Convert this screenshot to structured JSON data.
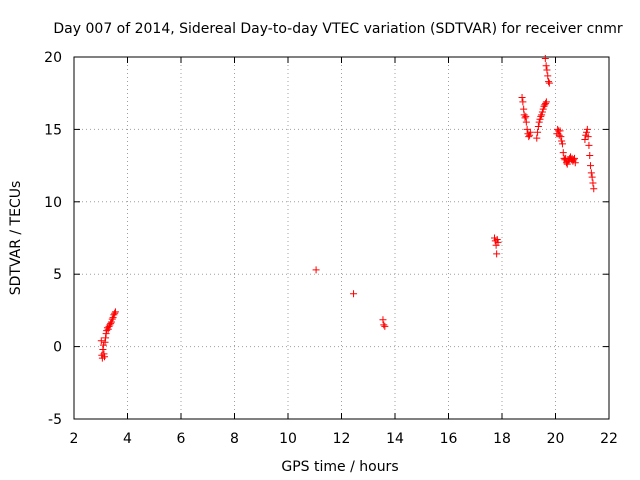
{
  "chart_data": {
    "type": "scatter",
    "title": "Day 007 of 2014, Sidereal Day-to-day VTEC variation (SDTVAR) for receiver cnmr",
    "xlabel": "GPS time / hours",
    "ylabel": "SDTVAR / TECUs",
    "xlim": [
      2,
      22
    ],
    "ylim": [
      -5,
      20
    ],
    "xticks": [
      2,
      4,
      6,
      8,
      10,
      12,
      14,
      16,
      18,
      20,
      22
    ],
    "yticks": [
      -5,
      0,
      5,
      10,
      15,
      20
    ],
    "grid": true,
    "marker": "+",
    "marker_color": "#ff0000",
    "series": [
      {
        "name": "SDTVAR",
        "points": [
          [
            3.02,
            0.4
          ],
          [
            3.04,
            -0.6
          ],
          [
            3.06,
            -0.8
          ],
          [
            3.08,
            -0.2
          ],
          [
            3.1,
            0.1
          ],
          [
            3.12,
            -0.5
          ],
          [
            3.14,
            -0.7
          ],
          [
            3.16,
            0.3
          ],
          [
            3.18,
            0.6
          ],
          [
            3.2,
            0.9
          ],
          [
            3.22,
            1.1
          ],
          [
            3.25,
            1.3
          ],
          [
            3.28,
            1.2
          ],
          [
            3.31,
            1.4
          ],
          [
            3.34,
            1.5
          ],
          [
            3.37,
            1.6
          ],
          [
            3.4,
            1.7
          ],
          [
            3.43,
            1.9
          ],
          [
            3.46,
            2.0
          ],
          [
            3.49,
            2.2
          ],
          [
            3.52,
            2.3
          ],
          [
            3.55,
            2.4
          ],
          [
            11.05,
            5.3
          ],
          [
            12.45,
            3.65
          ],
          [
            13.55,
            1.85
          ],
          [
            13.58,
            1.5
          ],
          [
            13.62,
            1.4
          ],
          [
            17.72,
            7.5
          ],
          [
            17.75,
            7.3
          ],
          [
            17.78,
            7.0
          ],
          [
            17.8,
            6.4
          ],
          [
            17.82,
            7.4
          ],
          [
            17.85,
            7.2
          ],
          [
            18.75,
            17.2
          ],
          [
            18.78,
            16.9
          ],
          [
            18.81,
            16.4
          ],
          [
            18.83,
            16.0
          ],
          [
            18.86,
            15.8
          ],
          [
            18.89,
            15.9
          ],
          [
            18.91,
            15.5
          ],
          [
            18.94,
            15.0
          ],
          [
            18.97,
            14.7
          ],
          [
            19.0,
            14.5
          ],
          [
            19.03,
            14.6
          ],
          [
            19.06,
            14.8
          ],
          [
            19.3,
            14.4
          ],
          [
            19.33,
            14.8
          ],
          [
            19.36,
            15.2
          ],
          [
            19.39,
            15.5
          ],
          [
            19.42,
            15.7
          ],
          [
            19.45,
            15.9
          ],
          [
            19.48,
            16.0
          ],
          [
            19.51,
            16.2
          ],
          [
            19.54,
            16.4
          ],
          [
            19.57,
            16.6
          ],
          [
            19.6,
            16.7
          ],
          [
            19.63,
            16.8
          ],
          [
            19.66,
            16.9
          ],
          [
            19.62,
            19.9
          ],
          [
            19.65,
            19.4
          ],
          [
            19.68,
            19.1
          ],
          [
            19.71,
            18.7
          ],
          [
            19.74,
            18.3
          ],
          [
            19.77,
            18.2
          ],
          [
            20.05,
            14.7
          ],
          [
            20.08,
            15.0
          ],
          [
            20.11,
            14.9
          ],
          [
            20.14,
            14.6
          ],
          [
            20.17,
            14.9
          ],
          [
            20.2,
            14.5
          ],
          [
            20.23,
            14.2
          ],
          [
            20.26,
            14.0
          ],
          [
            20.29,
            13.4
          ],
          [
            20.32,
            13.0
          ],
          [
            20.35,
            12.9
          ],
          [
            20.38,
            13.0
          ],
          [
            20.41,
            12.7
          ],
          [
            20.44,
            12.6
          ],
          [
            20.47,
            12.8
          ],
          [
            20.5,
            12.9
          ],
          [
            20.53,
            13.0
          ],
          [
            20.56,
            13.1
          ],
          [
            20.59,
            12.9
          ],
          [
            20.62,
            13.0
          ],
          [
            20.65,
            12.8
          ],
          [
            20.68,
            12.9
          ],
          [
            20.71,
            13.0
          ],
          [
            20.74,
            12.7
          ],
          [
            21.1,
            14.3
          ],
          [
            21.13,
            14.6
          ],
          [
            21.16,
            14.8
          ],
          [
            21.19,
            15.0
          ],
          [
            21.22,
            14.5
          ],
          [
            21.25,
            13.9
          ],
          [
            21.28,
            13.2
          ],
          [
            21.31,
            12.5
          ],
          [
            21.34,
            12.0
          ],
          [
            21.37,
            11.7
          ],
          [
            21.4,
            11.3
          ],
          [
            21.43,
            10.9
          ]
        ]
      }
    ]
  }
}
